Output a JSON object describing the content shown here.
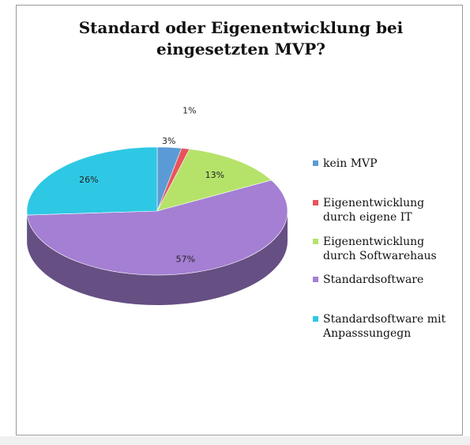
{
  "chart_data": {
    "type": "pie",
    "title_lines": [
      "Standard oder Eigenentwicklung bei",
      "eingesetzten MVP?"
    ],
    "slices": [
      {
        "label": "kein MVP",
        "value": 3,
        "data_label": "3%",
        "color": "#5b9bd5"
      },
      {
        "label": "Eigenentwicklung\ndurch eigene IT",
        "value": 1,
        "data_label": "1%",
        "color": "#e8545b"
      },
      {
        "label": "Eigenentwicklung\ndurch Softwarehaus",
        "value": 13,
        "data_label": "13%",
        "color": "#b5e36a"
      },
      {
        "label": "Standardsoftware",
        "value": 57,
        "data_label": "57%",
        "color": "#a47fd3"
      },
      {
        "label": "Standardsoftware mit\nAnpasssungegn",
        "value": 26,
        "data_label": "26%",
        "color": "#2ec8e4"
      }
    ],
    "legend_position": "right"
  }
}
